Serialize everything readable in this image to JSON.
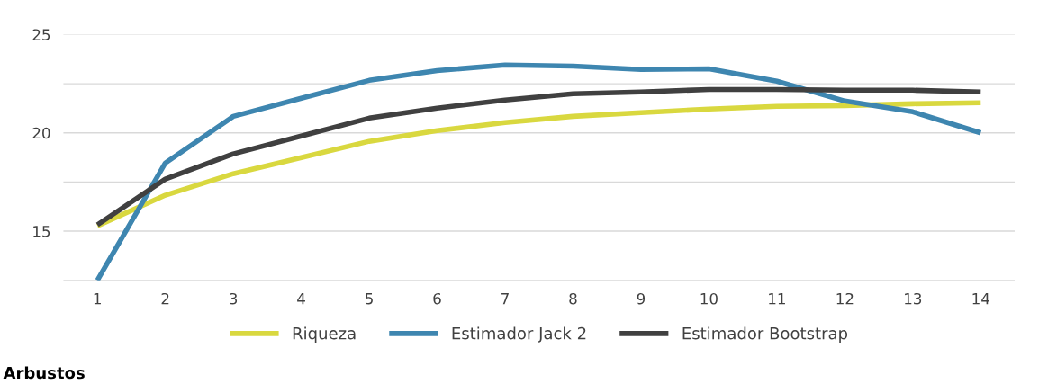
{
  "chart_data": {
    "type": "line",
    "categories": [
      "1",
      "2",
      "3",
      "4",
      "5",
      "6",
      "7",
      "8",
      "9",
      "10",
      "11",
      "12",
      "13",
      "14"
    ],
    "series": [
      {
        "name": "Riqueza",
        "color": "#d9d83f",
        "values": [
          15.27,
          16.83,
          17.92,
          18.74,
          19.57,
          20.11,
          20.53,
          20.84,
          21.03,
          21.21,
          21.35,
          21.39,
          21.48,
          21.53
        ]
      },
      {
        "name": "Estimador Jack 2",
        "color": "#3e86b0",
        "values": [
          12.5,
          18.47,
          20.84,
          21.76,
          22.67,
          23.17,
          23.45,
          23.4,
          23.22,
          23.26,
          22.63,
          21.62,
          21.07,
          20.0
        ]
      },
      {
        "name": "Estimador Bootstrap",
        "color": "#404040",
        "values": [
          15.32,
          17.65,
          18.93,
          19.84,
          20.75,
          21.26,
          21.67,
          21.99,
          22.08,
          22.21,
          22.21,
          22.17,
          22.17,
          22.08
        ]
      }
    ],
    "ylim": [
      12.5,
      25
    ],
    "yticks": [
      {
        "value": 12.5,
        "label": null
      },
      15,
      {
        "value": 17.5,
        "label": null
      },
      20,
      {
        "value": 22.5,
        "label": null
      },
      25
    ],
    "grid": "y",
    "legend": "bottom",
    "marker": "none",
    "line_style": "solid",
    "annotations": [
      "Arbustos"
    ]
  }
}
